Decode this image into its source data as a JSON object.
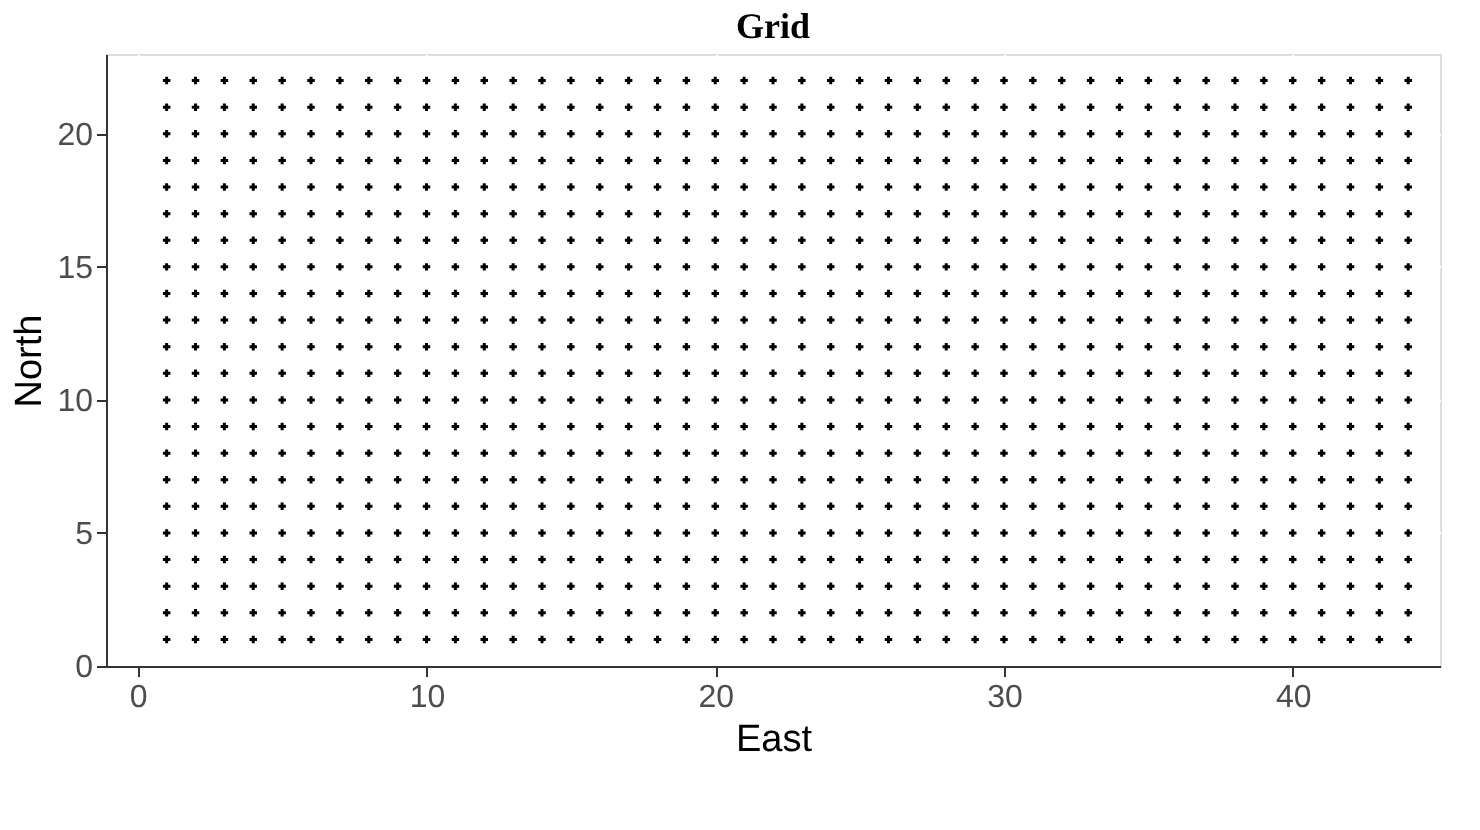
{
  "chart_data": {
    "type": "scatter",
    "title": "Grid",
    "xlabel": "East",
    "ylabel": "North",
    "x": [
      1,
      2,
      3,
      4,
      5,
      6,
      7,
      8,
      9,
      10,
      11,
      12,
      13,
      14,
      15,
      16,
      17,
      18,
      19,
      20,
      21,
      22,
      23,
      24,
      25,
      26,
      27,
      28,
      29,
      30,
      31,
      32,
      33,
      34,
      35,
      36,
      37,
      38,
      39,
      40,
      41,
      42,
      43,
      44
    ],
    "series": [
      {
        "color": "#000000",
        "values": [
          1,
          1,
          1,
          1,
          1,
          1,
          1,
          1,
          1,
          1,
          1,
          1,
          1,
          1,
          1,
          1,
          1,
          1,
          1,
          1,
          1,
          1,
          1,
          1,
          1,
          1,
          1,
          1,
          1,
          1,
          1,
          1,
          1,
          1,
          1,
          1,
          1,
          1,
          1,
          1,
          1,
          1,
          1,
          1
        ]
      },
      {
        "color": "#000000",
        "values": [
          2,
          2,
          2,
          2,
          2,
          2,
          2,
          2,
          2,
          2,
          2,
          2,
          2,
          2,
          2,
          2,
          2,
          2,
          2,
          2,
          2,
          2,
          2,
          2,
          2,
          2,
          2,
          2,
          2,
          2,
          2,
          2,
          2,
          2,
          2,
          2,
          2,
          2,
          2,
          2,
          2,
          2,
          2,
          2
        ]
      },
      {
        "color": "#000000",
        "values": [
          3,
          3,
          3,
          3,
          3,
          3,
          3,
          3,
          3,
          3,
          3,
          3,
          3,
          3,
          3,
          3,
          3,
          3,
          3,
          3,
          3,
          3,
          3,
          3,
          3,
          3,
          3,
          3,
          3,
          3,
          3,
          3,
          3,
          3,
          3,
          3,
          3,
          3,
          3,
          3,
          3,
          3,
          3,
          3
        ]
      },
      {
        "color": "#000000",
        "values": [
          4,
          4,
          4,
          4,
          4,
          4,
          4,
          4,
          4,
          4,
          4,
          4,
          4,
          4,
          4,
          4,
          4,
          4,
          4,
          4,
          4,
          4,
          4,
          4,
          4,
          4,
          4,
          4,
          4,
          4,
          4,
          4,
          4,
          4,
          4,
          4,
          4,
          4,
          4,
          4,
          4,
          4,
          4,
          4
        ]
      },
      {
        "color": "#000000",
        "values": [
          5,
          5,
          5,
          5,
          5,
          5,
          5,
          5,
          5,
          5,
          5,
          5,
          5,
          5,
          5,
          5,
          5,
          5,
          5,
          5,
          5,
          5,
          5,
          5,
          5,
          5,
          5,
          5,
          5,
          5,
          5,
          5,
          5,
          5,
          5,
          5,
          5,
          5,
          5,
          5,
          5,
          5,
          5,
          5
        ]
      },
      {
        "color": "#000000",
        "values": [
          6,
          6,
          6,
          6,
          6,
          6,
          6,
          6,
          6,
          6,
          6,
          6,
          6,
          6,
          6,
          6,
          6,
          6,
          6,
          6,
          6,
          6,
          6,
          6,
          6,
          6,
          6,
          6,
          6,
          6,
          6,
          6,
          6,
          6,
          6,
          6,
          6,
          6,
          6,
          6,
          6,
          6,
          6,
          6
        ]
      },
      {
        "color": "#000000",
        "values": [
          7,
          7,
          7,
          7,
          7,
          7,
          7,
          7,
          7,
          7,
          7,
          7,
          7,
          7,
          7,
          7,
          7,
          7,
          7,
          7,
          7,
          7,
          7,
          7,
          7,
          7,
          7,
          7,
          7,
          7,
          7,
          7,
          7,
          7,
          7,
          7,
          7,
          7,
          7,
          7,
          7,
          7,
          7,
          7
        ]
      },
      {
        "color": "#000000",
        "values": [
          8,
          8,
          8,
          8,
          8,
          8,
          8,
          8,
          8,
          8,
          8,
          8,
          8,
          8,
          8,
          8,
          8,
          8,
          8,
          8,
          8,
          8,
          8,
          8,
          8,
          8,
          8,
          8,
          8,
          8,
          8,
          8,
          8,
          8,
          8,
          8,
          8,
          8,
          8,
          8,
          8,
          8,
          8,
          8
        ]
      },
      {
        "color": "#000000",
        "values": [
          9,
          9,
          9,
          9,
          9,
          9,
          9,
          9,
          9,
          9,
          9,
          9,
          9,
          9,
          9,
          9,
          9,
          9,
          9,
          9,
          9,
          9,
          9,
          9,
          9,
          9,
          9,
          9,
          9,
          9,
          9,
          9,
          9,
          9,
          9,
          9,
          9,
          9,
          9,
          9,
          9,
          9,
          9,
          9
        ]
      },
      {
        "color": "#000000",
        "values": [
          10,
          10,
          10,
          10,
          10,
          10,
          10,
          10,
          10,
          10,
          10,
          10,
          10,
          10,
          10,
          10,
          10,
          10,
          10,
          10,
          10,
          10,
          10,
          10,
          10,
          10,
          10,
          10,
          10,
          10,
          10,
          10,
          10,
          10,
          10,
          10,
          10,
          10,
          10,
          10,
          10,
          10,
          10,
          10
        ]
      },
      {
        "color": "#000000",
        "values": [
          11,
          11,
          11,
          11,
          11,
          11,
          11,
          11,
          11,
          11,
          11,
          11,
          11,
          11,
          11,
          11,
          11,
          11,
          11,
          11,
          11,
          11,
          11,
          11,
          11,
          11,
          11,
          11,
          11,
          11,
          11,
          11,
          11,
          11,
          11,
          11,
          11,
          11,
          11,
          11,
          11,
          11,
          11,
          11
        ]
      },
      {
        "color": "#000000",
        "values": [
          12,
          12,
          12,
          12,
          12,
          12,
          12,
          12,
          12,
          12,
          12,
          12,
          12,
          12,
          12,
          12,
          12,
          12,
          12,
          12,
          12,
          12,
          12,
          12,
          12,
          12,
          12,
          12,
          12,
          12,
          12,
          12,
          12,
          12,
          12,
          12,
          12,
          12,
          12,
          12,
          12,
          12,
          12,
          12
        ]
      },
      {
        "color": "#000000",
        "values": [
          13,
          13,
          13,
          13,
          13,
          13,
          13,
          13,
          13,
          13,
          13,
          13,
          13,
          13,
          13,
          13,
          13,
          13,
          13,
          13,
          13,
          13,
          13,
          13,
          13,
          13,
          13,
          13,
          13,
          13,
          13,
          13,
          13,
          13,
          13,
          13,
          13,
          13,
          13,
          13,
          13,
          13,
          13,
          13
        ]
      },
      {
        "color": "#000000",
        "values": [
          14,
          14,
          14,
          14,
          14,
          14,
          14,
          14,
          14,
          14,
          14,
          14,
          14,
          14,
          14,
          14,
          14,
          14,
          14,
          14,
          14,
          14,
          14,
          14,
          14,
          14,
          14,
          14,
          14,
          14,
          14,
          14,
          14,
          14,
          14,
          14,
          14,
          14,
          14,
          14,
          14,
          14,
          14,
          14
        ]
      },
      {
        "color": "#000000",
        "values": [
          15,
          15,
          15,
          15,
          15,
          15,
          15,
          15,
          15,
          15,
          15,
          15,
          15,
          15,
          15,
          15,
          15,
          15,
          15,
          15,
          15,
          15,
          15,
          15,
          15,
          15,
          15,
          15,
          15,
          15,
          15,
          15,
          15,
          15,
          15,
          15,
          15,
          15,
          15,
          15,
          15,
          15,
          15,
          15
        ]
      },
      {
        "color": "#000000",
        "values": [
          16,
          16,
          16,
          16,
          16,
          16,
          16,
          16,
          16,
          16,
          16,
          16,
          16,
          16,
          16,
          16,
          16,
          16,
          16,
          16,
          16,
          16,
          16,
          16,
          16,
          16,
          16,
          16,
          16,
          16,
          16,
          16,
          16,
          16,
          16,
          16,
          16,
          16,
          16,
          16,
          16,
          16,
          16,
          16
        ]
      },
      {
        "color": "#000000",
        "values": [
          17,
          17,
          17,
          17,
          17,
          17,
          17,
          17,
          17,
          17,
          17,
          17,
          17,
          17,
          17,
          17,
          17,
          17,
          17,
          17,
          17,
          17,
          17,
          17,
          17,
          17,
          17,
          17,
          17,
          17,
          17,
          17,
          17,
          17,
          17,
          17,
          17,
          17,
          17,
          17,
          17,
          17,
          17,
          17
        ]
      },
      {
        "color": "#000000",
        "values": [
          18,
          18,
          18,
          18,
          18,
          18,
          18,
          18,
          18,
          18,
          18,
          18,
          18,
          18,
          18,
          18,
          18,
          18,
          18,
          18,
          18,
          18,
          18,
          18,
          18,
          18,
          18,
          18,
          18,
          18,
          18,
          18,
          18,
          18,
          18,
          18,
          18,
          18,
          18,
          18,
          18,
          18,
          18,
          18
        ]
      },
      {
        "color": "#000000",
        "values": [
          19,
          19,
          19,
          19,
          19,
          19,
          19,
          19,
          19,
          19,
          19,
          19,
          19,
          19,
          19,
          19,
          19,
          19,
          19,
          19,
          19,
          19,
          19,
          19,
          19,
          19,
          19,
          19,
          19,
          19,
          19,
          19,
          19,
          19,
          19,
          19,
          19,
          19,
          19,
          19,
          19,
          19,
          19,
          19
        ]
      },
      {
        "color": "#000000",
        "values": [
          20,
          20,
          20,
          20,
          20,
          20,
          20,
          20,
          20,
          20,
          20,
          20,
          20,
          20,
          20,
          20,
          20,
          20,
          20,
          20,
          20,
          20,
          20,
          20,
          20,
          20,
          20,
          20,
          20,
          20,
          20,
          20,
          20,
          20,
          20,
          20,
          20,
          20,
          20,
          20,
          20,
          20,
          20,
          20
        ]
      },
      {
        "color": "#000000",
        "values": [
          21,
          21,
          21,
          21,
          21,
          21,
          21,
          21,
          21,
          21,
          21,
          21,
          21,
          21,
          21,
          21,
          21,
          21,
          21,
          21,
          21,
          21,
          21,
          21,
          21,
          21,
          21,
          21,
          21,
          21,
          21,
          21,
          21,
          21,
          21,
          21,
          21,
          21,
          21,
          21,
          21,
          21,
          21,
          21
        ]
      },
      {
        "color": "#000000",
        "values": [
          22,
          22,
          22,
          22,
          22,
          22,
          22,
          22,
          22,
          22,
          22,
          22,
          22,
          22,
          22,
          22,
          22,
          22,
          22,
          22,
          22,
          22,
          22,
          22,
          22,
          22,
          22,
          22,
          22,
          22,
          22,
          22,
          22,
          22,
          22,
          22,
          22,
          22,
          22,
          22,
          22,
          22,
          22,
          22
        ]
      }
    ],
    "xlim": [
      -1.1,
      45.1
    ],
    "ylim": [
      0,
      23
    ],
    "xticks": [
      0,
      10,
      20,
      30,
      40
    ],
    "yticks": [
      0,
      5,
      10,
      15,
      20
    ],
    "grid": true,
    "marker": "cross"
  }
}
